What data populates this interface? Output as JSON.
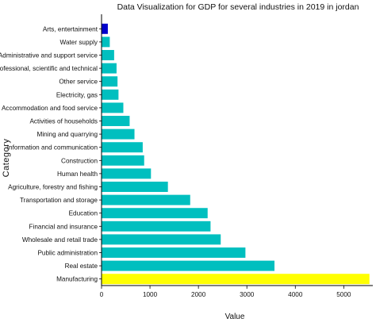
{
  "chart_data": {
    "type": "bar",
    "orientation": "horizontal",
    "title": "Data Visualization for GDP for several industries in 2019 in jordan",
    "xlabel": "Value",
    "ylabel": "Category",
    "xlim": [
      0,
      5600
    ],
    "xticks": [
      0,
      1000,
      2000,
      3000,
      4000,
      5000
    ],
    "grid": false,
    "categories": [
      "Manufacturing",
      "Real estate",
      "Public administration",
      "Wholesale and retail trade",
      "Financial and insurance",
      "Education",
      "Transportation and storage",
      "Agriculture, forestry and fishing",
      "Human health",
      "Construction",
      "Information and communication",
      "Mining and quarrying",
      "Activities of households",
      "Accommodation and food service",
      "Electricity, gas",
      "Other service",
      "Professional, scientific and technical",
      "Administrative and support service",
      "Water supply",
      "Arts, entertainment"
    ],
    "values": [
      5530,
      3570,
      2970,
      2460,
      2250,
      2190,
      1830,
      1370,
      1020,
      880,
      850,
      680,
      580,
      450,
      350,
      330,
      310,
      260,
      170,
      130
    ],
    "colors": {
      "default": "#00bfbf",
      "highest": "#ffff00",
      "lowest": "#0000cc"
    }
  }
}
